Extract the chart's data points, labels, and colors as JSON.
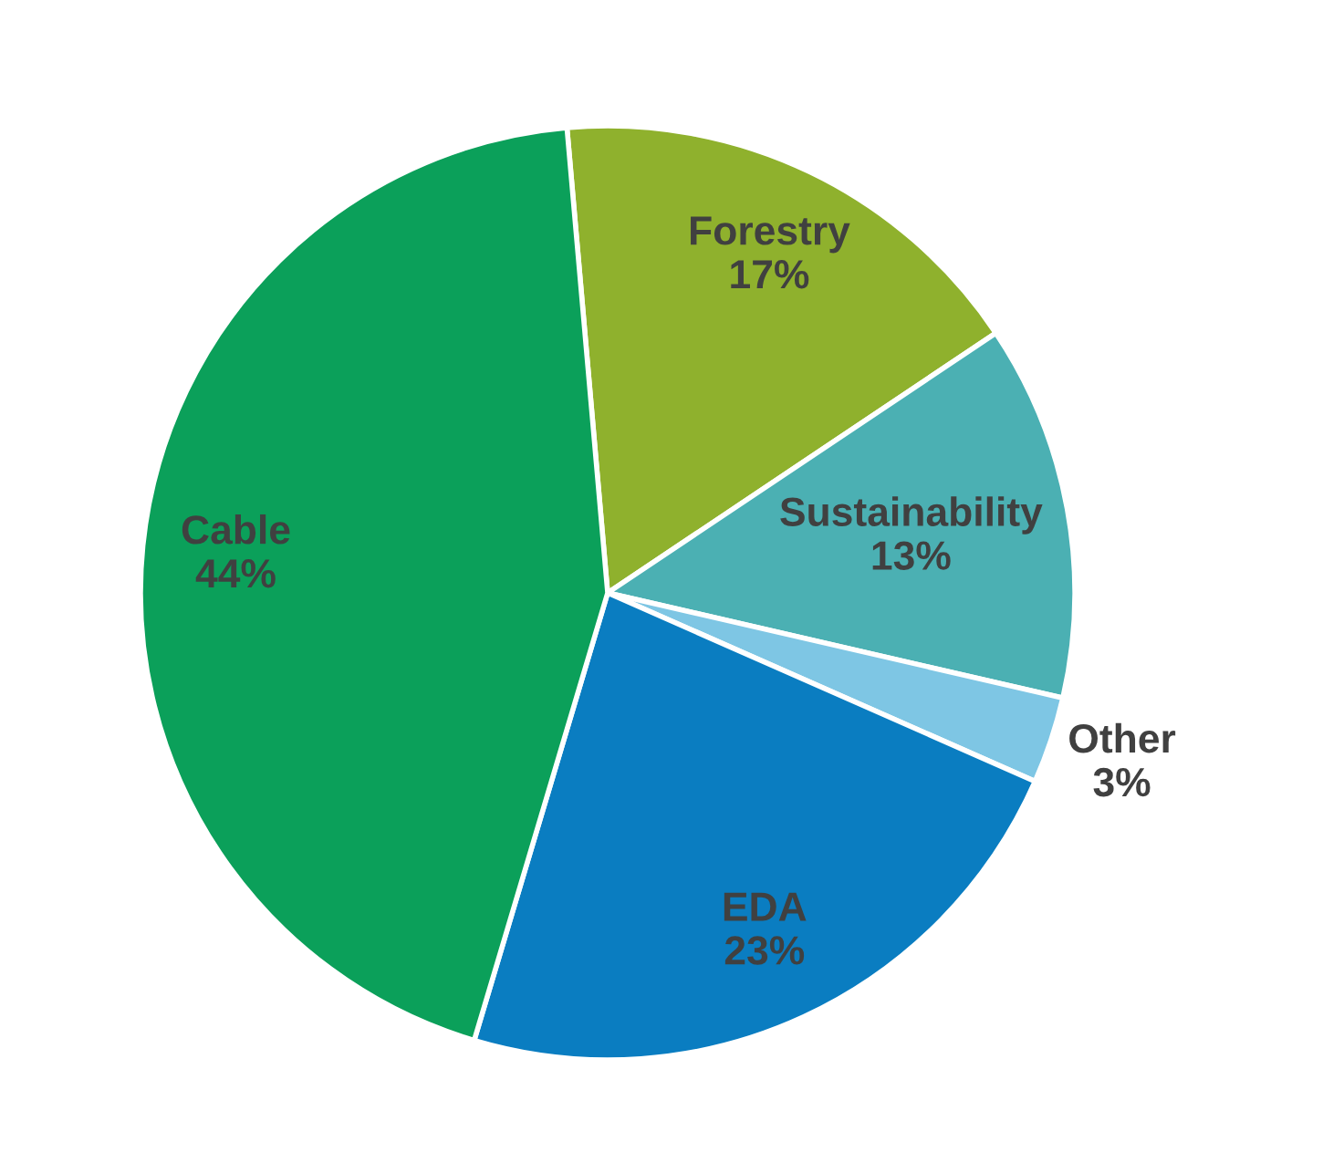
{
  "chart_data": {
    "type": "pie",
    "categories": [
      "Forestry",
      "Sustainability",
      "Other",
      "EDA",
      "Cable"
    ],
    "values": [
      17,
      13,
      3,
      23,
      44
    ],
    "value_labels": [
      "17%",
      "13%",
      "3%",
      "23%",
      "44%"
    ],
    "colors": [
      "#8fb12d",
      "#4bb0b3",
      "#7ec6e4",
      "#0a7dc1",
      "#0ba05a"
    ],
    "legend": false
  }
}
